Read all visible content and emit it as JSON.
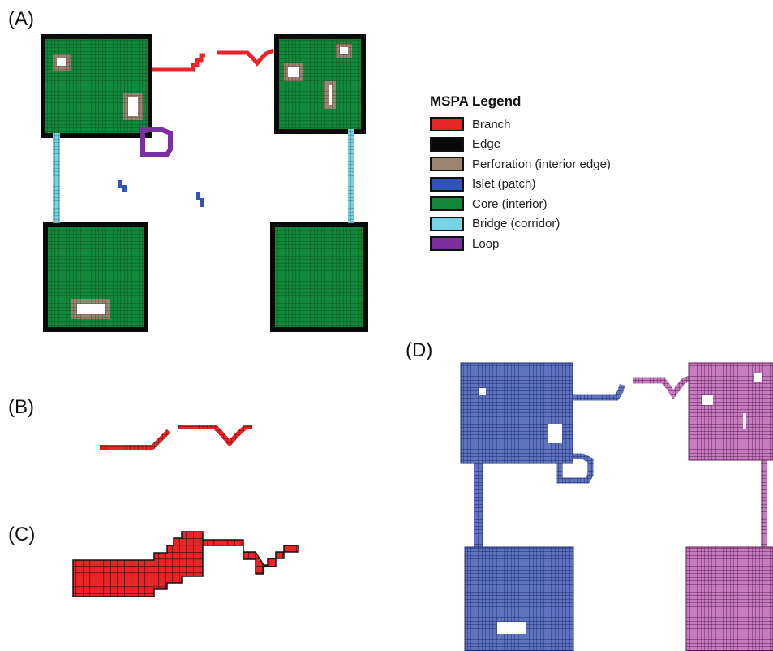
{
  "panels": {
    "a": "(A)",
    "b": "(B)",
    "c": "(C)",
    "d": "(D)"
  },
  "legend": {
    "title": "MSPA Legend",
    "items": [
      {
        "label": "Branch",
        "color": "#e8262a"
      },
      {
        "label": "Edge",
        "color": "#0a0a0a"
      },
      {
        "label": "Perforation (interior edge)",
        "color": "#9b8470"
      },
      {
        "label": "Islet (patch)",
        "color": "#2f53b7"
      },
      {
        "label": "Core (interior)",
        "color": "#12883a"
      },
      {
        "label": "Bridge (corridor)",
        "color": "#74d3e4"
      },
      {
        "label": "Loop",
        "color": "#7b2fa0"
      }
    ]
  },
  "colors": {
    "branch": "#e8262a",
    "edge": "#0a0a0a",
    "perforation": "#9b8470",
    "islet": "#2f53b7",
    "core": "#12883a",
    "bridge": "#74d3e4",
    "loop": "#7b2fa0",
    "blue_patch": "#4a5fa8",
    "pink_patch": "#b460a8"
  }
}
